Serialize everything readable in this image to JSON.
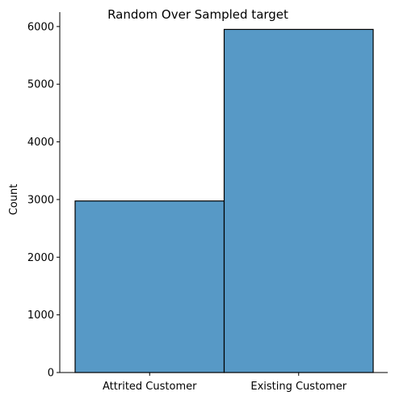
{
  "chart_data": {
    "type": "bar",
    "title": "Random Over Sampled target",
    "xlabel": "",
    "ylabel": "Count",
    "categories": [
      "Attrited Customer",
      "Existing Customer"
    ],
    "values": [
      2975,
      5950
    ],
    "ylim": [
      0,
      6250
    ],
    "yticks": [
      0,
      1000,
      2000,
      3000,
      4000,
      5000,
      6000
    ],
    "grid": false,
    "bar_color": "#5799c6",
    "edge_color": "#000000"
  }
}
